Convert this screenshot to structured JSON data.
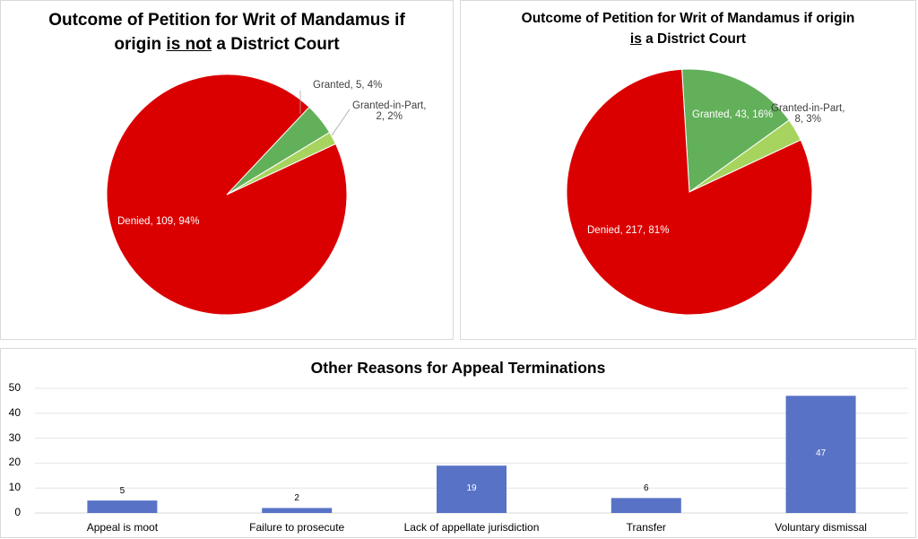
{
  "chart_data": [
    {
      "type": "pie",
      "title_parts": [
        "Outcome of Petition for Writ of Mandamus if origin ",
        "is not",
        " a District Court"
      ],
      "categories": [
        "Denied",
        "Granted",
        "Granted-in-Part"
      ],
      "values": [
        109,
        5,
        2
      ],
      "percents": [
        94,
        4,
        2
      ],
      "labels": [
        "Denied, 109, 94%",
        "Granted, 5, 4%",
        "Granted-in-Part,",
        "2, 2%"
      ],
      "colors": [
        "#db0000",
        "#63b05a",
        "#a6d45e"
      ]
    },
    {
      "type": "pie",
      "title_parts": [
        "Outcome of Petition for Writ of Mandamus if origin ",
        "is",
        " a District Court"
      ],
      "categories": [
        "Denied",
        "Granted",
        "Granted-in-Part"
      ],
      "values": [
        217,
        43,
        8
      ],
      "percents": [
        81,
        16,
        3
      ],
      "labels": [
        "Denied, 217, 81%",
        "Granted, 43, 16%",
        "Granted-in-Part,",
        "8, 3%"
      ],
      "colors": [
        "#db0000",
        "#63b05a",
        "#a6d45e"
      ]
    },
    {
      "type": "bar",
      "title": "Other Reasons for Appeal Terminations",
      "categories": [
        "Appeal is moot",
        "Failure to prosecute",
        "Lack of appellate jurisdiction",
        "Transfer",
        "Voluntary dismissal"
      ],
      "values": [
        5,
        2,
        19,
        6,
        47
      ],
      "value_labels": [
        "5",
        "2",
        "19",
        "6",
        "47"
      ],
      "yticks": [
        "0",
        "10",
        "20",
        "30",
        "40",
        "50"
      ],
      "ylim": [
        0,
        50
      ],
      "grid": true,
      "color": "#5873c6"
    }
  ]
}
